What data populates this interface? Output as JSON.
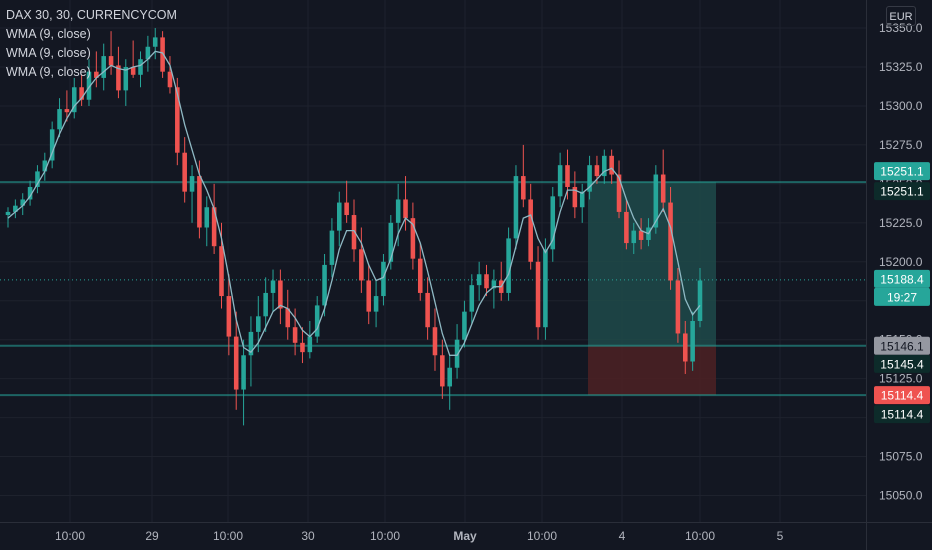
{
  "header": {
    "symbol": "DAX 30, 30, CURRENCYCOM",
    "indicators": [
      "WMA (9, close)",
      "WMA (9, close)",
      "WMA (9, close)"
    ],
    "currency": "EUR"
  },
  "colors": {
    "background": "#131722",
    "up": "#26a69a",
    "down": "#ef5350",
    "wma": "#8fb9c4",
    "level_line": "#26a69a",
    "grid": "#1e222d",
    "axis_text": "#b2b5be",
    "profit_zone": "#1f4a4a",
    "loss_zone": "#4a2023"
  },
  "chart_data": {
    "type": "candlestick",
    "title": "DAX 30, 30, CURRENCYCOM",
    "y_axis": {
      "ticks": [
        15050.0,
        15075.0,
        15100.0,
        15125.0,
        15150.0,
        15175.0,
        15200.0,
        15225.0,
        15250.0,
        15275.0,
        15300.0,
        15325.0,
        15350.0
      ],
      "tick_labels": [
        "15050.0",
        "15075.0",
        "15100.0",
        "15125.0",
        "15150.0",
        "15175.0",
        "15200.0",
        "15225.0",
        "15250.0",
        "15275.0",
        "15300.0",
        "15325.0",
        "15350.0"
      ],
      "range": [
        15033,
        15368
      ]
    },
    "x_axis": {
      "tick_labels": [
        "10:00",
        "29",
        "10:00",
        "30",
        "10:00",
        "May",
        "10:00",
        "4",
        "10:00",
        "5"
      ]
    },
    "levels": [
      15251.1,
      15146.1,
      15114.4
    ],
    "price_labels": [
      {
        "text": "15251.1",
        "style": "filled",
        "value": 15251.1
      },
      {
        "text": "15251.1",
        "style": "dark",
        "value": 15251.1
      },
      {
        "text": "15188.4",
        "style": "filled",
        "value": 15188.4
      },
      {
        "text": "19:27",
        "style": "filled-sub",
        "value": 15188.4
      },
      {
        "text": "15146.1",
        "style": "grey",
        "value": 15146.1
      },
      {
        "text": "15145.4",
        "style": "dark",
        "value": 15145.4
      },
      {
        "text": "15114.4",
        "style": "red",
        "value": 15114.4
      },
      {
        "text": "15114.4",
        "style": "dark",
        "value": 15114.4
      }
    ],
    "position": {
      "entry": 15146.1,
      "target": 15251.1,
      "stop": 15114.4
    },
    "last_price": 15188.4,
    "countdown": "19:27",
    "candles": [
      [
        15230,
        15235,
        15222,
        15232
      ],
      [
        15232,
        15240,
        15228,
        15236
      ],
      [
        15236,
        15244,
        15230,
        15240
      ],
      [
        15240,
        15252,
        15236,
        15248
      ],
      [
        15248,
        15262,
        15244,
        15258
      ],
      [
        15258,
        15270,
        15252,
        15265
      ],
      [
        15265,
        15290,
        15260,
        15285
      ],
      [
        15285,
        15305,
        15280,
        15298
      ],
      [
        15298,
        15310,
        15290,
        15296
      ],
      [
        15296,
        15318,
        15292,
        15312
      ],
      [
        15312,
        15320,
        15300,
        15304
      ],
      [
        15304,
        15330,
        15300,
        15322
      ],
      [
        15322,
        15335,
        15312,
        15318
      ],
      [
        15318,
        15340,
        15310,
        15332
      ],
      [
        15332,
        15348,
        15320,
        15326
      ],
      [
        15326,
        15338,
        15305,
        15310
      ],
      [
        15310,
        15330,
        15300,
        15325
      ],
      [
        15325,
        15342,
        15318,
        15320
      ],
      [
        15320,
        15335,
        15312,
        15330
      ],
      [
        15330,
        15345,
        15322,
        15338
      ],
      [
        15338,
        15350,
        15330,
        15344
      ],
      [
        15344,
        15348,
        15318,
        15322
      ],
      [
        15322,
        15332,
        15308,
        15312
      ],
      [
        15312,
        15318,
        15262,
        15270
      ],
      [
        15270,
        15280,
        15238,
        15245
      ],
      [
        15245,
        15262,
        15225,
        15255
      ],
      [
        15255,
        15265,
        15215,
        15222
      ],
      [
        15222,
        15242,
        15210,
        15235
      ],
      [
        15235,
        15250,
        15205,
        15210
      ],
      [
        15210,
        15225,
        15170,
        15178
      ],
      [
        15178,
        15192,
        15140,
        15152
      ],
      [
        15152,
        15168,
        15105,
        15118
      ],
      [
        15118,
        15150,
        15095,
        15140
      ],
      [
        15140,
        15165,
        15120,
        15155
      ],
      [
        15155,
        15178,
        15142,
        15165
      ],
      [
        15165,
        15190,
        15155,
        15180
      ],
      [
        15180,
        15195,
        15168,
        15188
      ],
      [
        15188,
        15195,
        15160,
        15170
      ],
      [
        15170,
        15182,
        15150,
        15158
      ],
      [
        15158,
        15170,
        15140,
        15148
      ],
      [
        15148,
        15158,
        15135,
        15142
      ],
      [
        15142,
        15162,
        15138,
        15152
      ],
      [
        15152,
        15178,
        15148,
        15172
      ],
      [
        15172,
        15205,
        15165,
        15198
      ],
      [
        15198,
        15228,
        15190,
        15220
      ],
      [
        15220,
        15245,
        15210,
        15238
      ],
      [
        15238,
        15252,
        15225,
        15230
      ],
      [
        15230,
        15240,
        15200,
        15208
      ],
      [
        15208,
        15222,
        15180,
        15188
      ],
      [
        15188,
        15198,
        15160,
        15168
      ],
      [
        15168,
        15188,
        15158,
        15178
      ],
      [
        15178,
        15205,
        15172,
        15200
      ],
      [
        15200,
        15230,
        15195,
        15225
      ],
      [
        15225,
        15250,
        15210,
        15240
      ],
      [
        15240,
        15255,
        15220,
        15228
      ],
      [
        15228,
        15238,
        15195,
        15202
      ],
      [
        15202,
        15212,
        15175,
        15180
      ],
      [
        15180,
        15190,
        15150,
        15158
      ],
      [
        15158,
        15170,
        15130,
        15140
      ],
      [
        15140,
        15150,
        15112,
        15120
      ],
      [
        15120,
        15140,
        15105,
        15132
      ],
      [
        15132,
        15160,
        15125,
        15150
      ],
      [
        15150,
        15175,
        15145,
        15168
      ],
      [
        15168,
        15192,
        15160,
        15185
      ],
      [
        15185,
        15200,
        15175,
        15192
      ],
      [
        15192,
        15198,
        15178,
        15183
      ],
      [
        15183,
        15195,
        15170,
        15188
      ],
      [
        15188,
        15200,
        15175,
        15180
      ],
      [
        15180,
        15222,
        15175,
        15215
      ],
      [
        15215,
        15262,
        15208,
        15255
      ],
      [
        15255,
        15275,
        15235,
        15240
      ],
      [
        15240,
        15250,
        15195,
        15200
      ],
      [
        15200,
        15210,
        15150,
        15158
      ],
      [
        15158,
        15215,
        15150,
        15208
      ],
      [
        15208,
        15248,
        15200,
        15242
      ],
      [
        15242,
        15270,
        15235,
        15262
      ],
      [
        15262,
        15272,
        15240,
        15248
      ],
      [
        15248,
        15258,
        15228,
        15235
      ],
      [
        15235,
        15250,
        15225,
        15245
      ],
      [
        15245,
        15268,
        15240,
        15262
      ],
      [
        15262,
        15268,
        15250,
        15255
      ],
      [
        15255,
        15272,
        15250,
        15268
      ],
      [
        15268,
        15272,
        15250,
        15256
      ],
      [
        15256,
        15265,
        15228,
        15232
      ],
      [
        15232,
        15240,
        15208,
        15212
      ],
      [
        15212,
        15225,
        15205,
        15220
      ],
      [
        15220,
        15228,
        15208,
        15214
      ],
      [
        15214,
        15228,
        15210,
        15222
      ],
      [
        15222,
        15262,
        15218,
        15256
      ],
      [
        15256,
        15272,
        15232,
        15238
      ],
      [
        15238,
        15248,
        15182,
        15188
      ],
      [
        15188,
        15196,
        15148,
        15154
      ],
      [
        15154,
        15162,
        15128,
        15136
      ],
      [
        15136,
        15168,
        15130,
        15162
      ],
      [
        15162,
        15196,
        15158,
        15188
      ]
    ],
    "wma": [
      15228,
      15232,
      15236,
      15242,
      15250,
      15258,
      15270,
      15282,
      15292,
      15300,
      15305,
      15312,
      15318,
      15322,
      15326,
      15324,
      15323,
      15325,
      15326,
      15330,
      15335,
      15334,
      15326,
      15308,
      15288,
      15272,
      15256,
      15246,
      15234,
      15215,
      15190,
      15163,
      15145,
      15142,
      15148,
      15158,
      15168,
      15172,
      15170,
      15164,
      15156,
      15152,
      15157,
      15170,
      15188,
      15208,
      15220,
      15220,
      15212,
      15198,
      15188,
      15190,
      15202,
      15218,
      15228,
      15224,
      15212,
      15194,
      15174,
      15154,
      15140,
      15140,
      15148,
      15160,
      15172,
      15180,
      15184,
      15184,
      15192,
      15210,
      15228,
      15230,
      15215,
      15206,
      15214,
      15232,
      15246,
      15246,
      15244,
      15248,
      15253,
      15258,
      15260,
      15254,
      15240,
      15228,
      15220,
      15218,
      15226,
      15234,
      15222,
      15200,
      15176,
      15166,
      15172
    ]
  }
}
